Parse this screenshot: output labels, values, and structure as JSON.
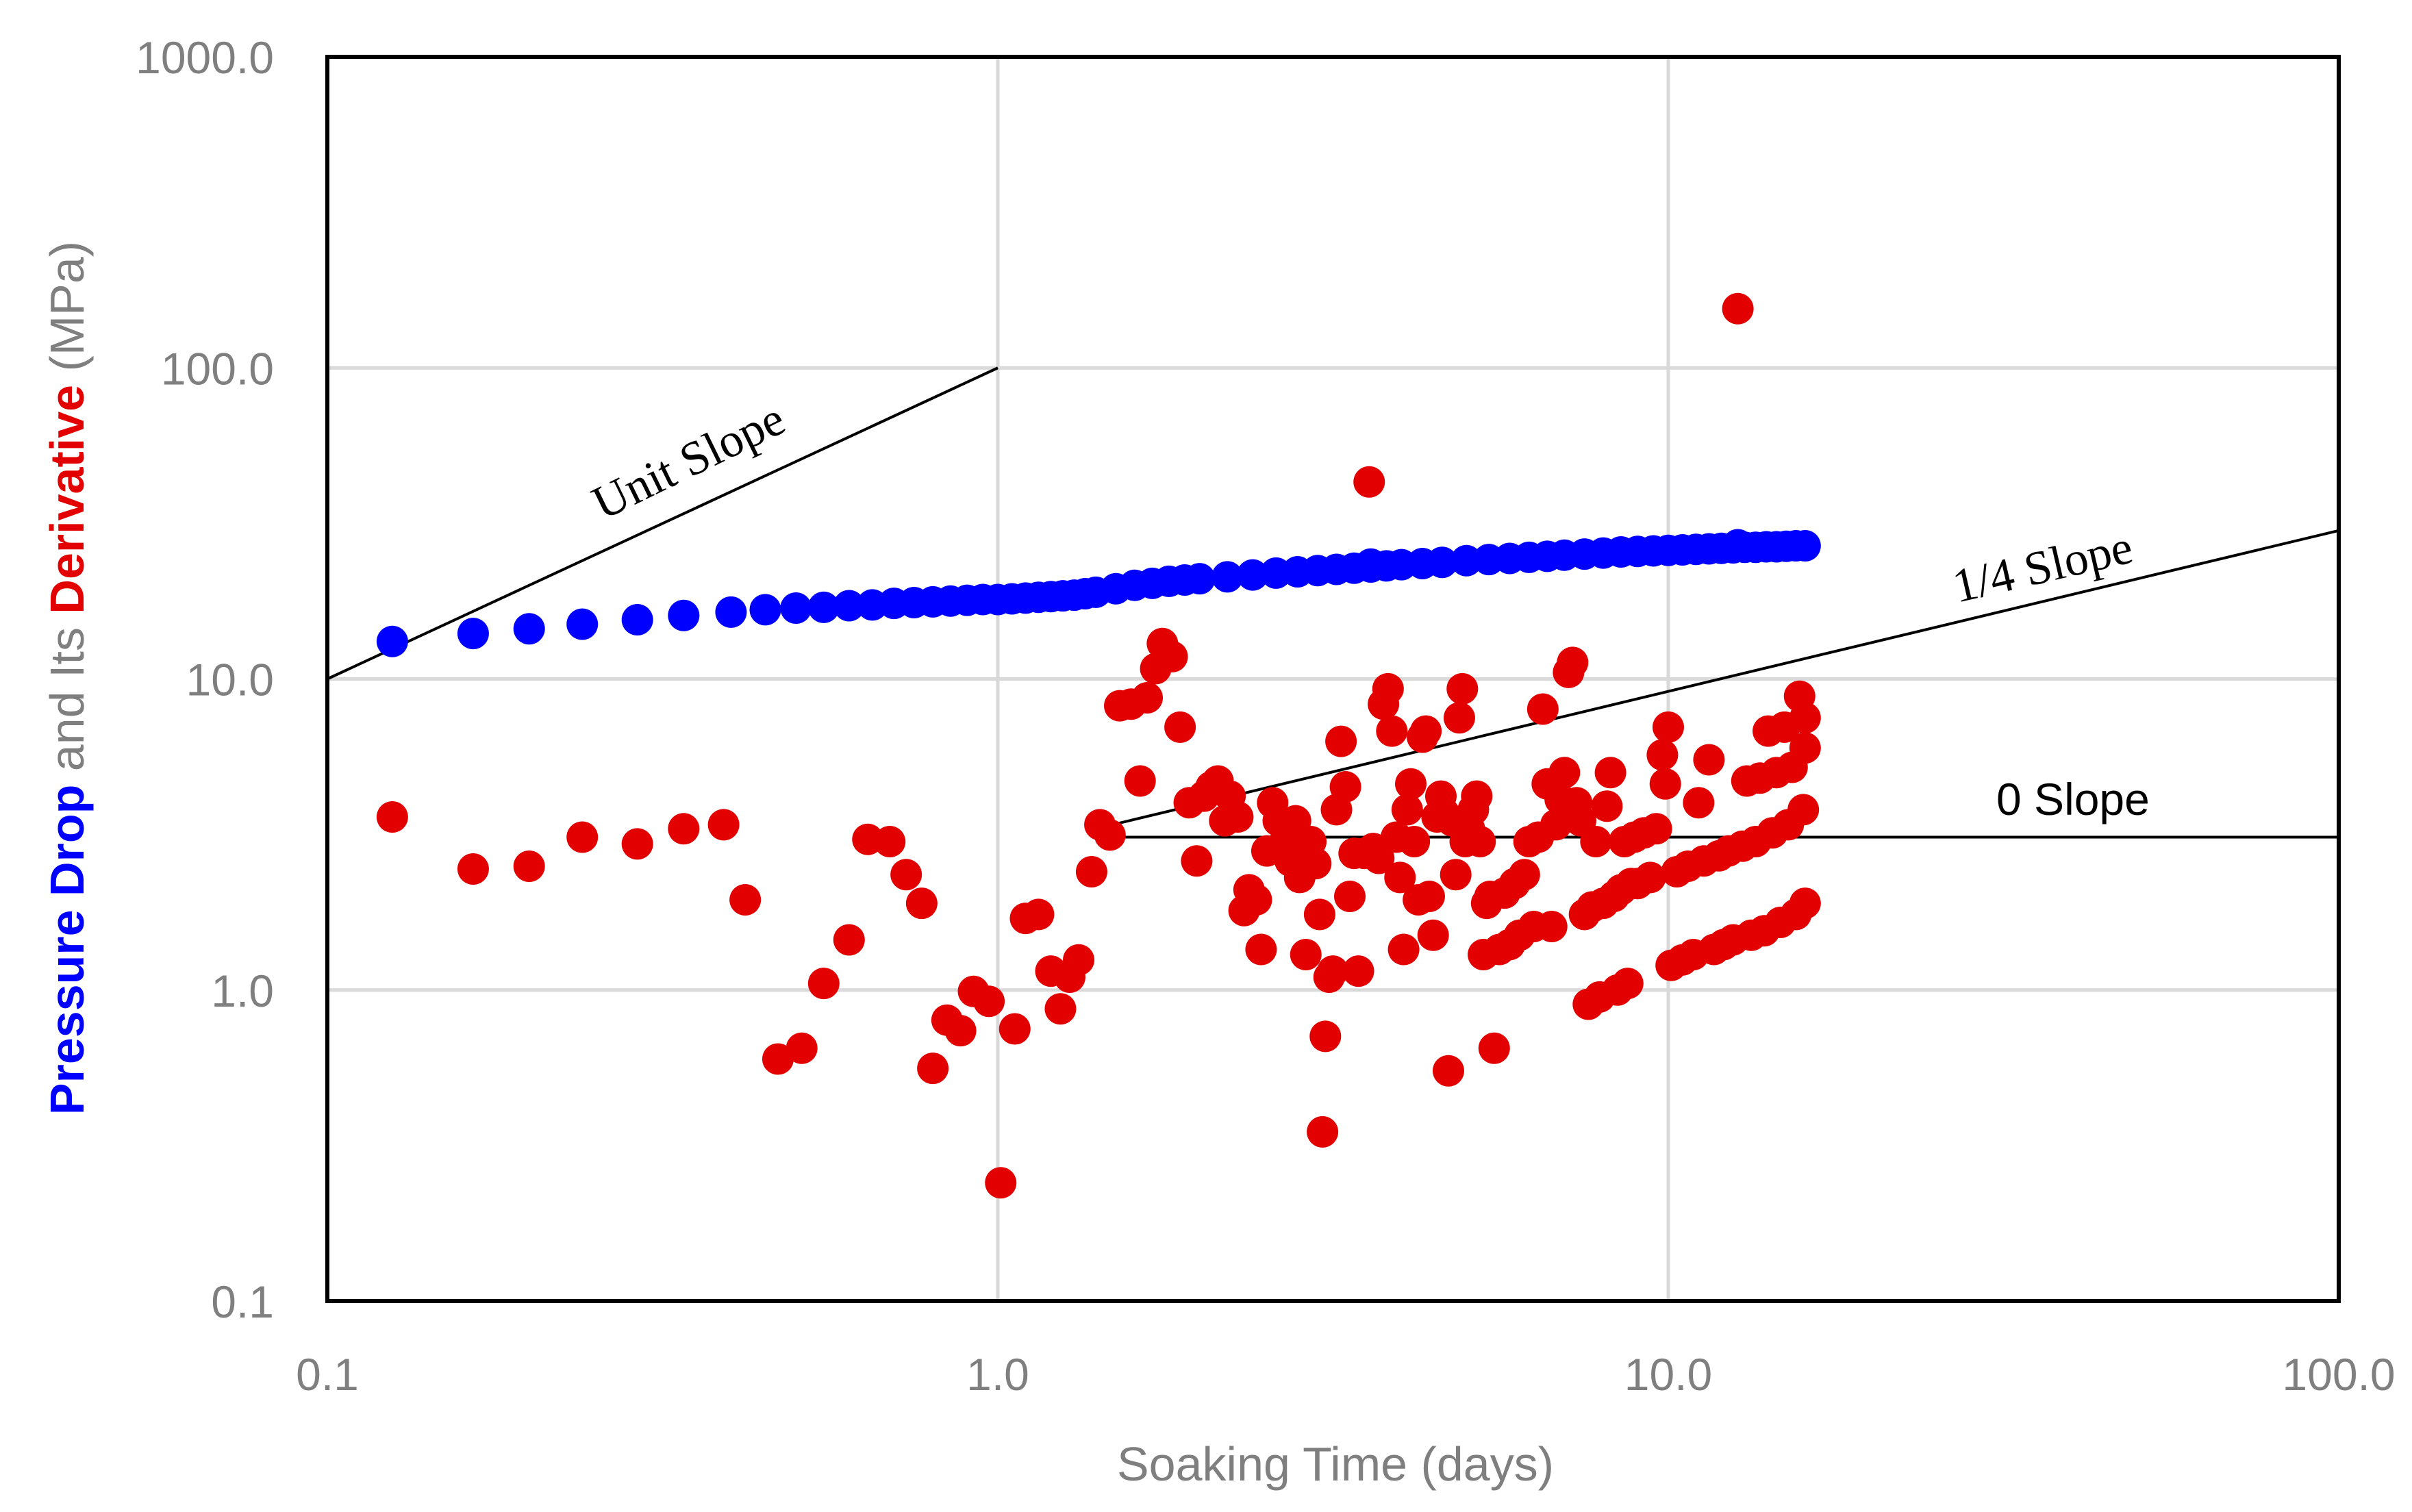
{
  "chart_data": {
    "type": "scatter",
    "x_scale": "log",
    "y_scale": "log",
    "xlim": [
      0.1,
      100
    ],
    "ylim": [
      0.1,
      1000
    ],
    "xlabel": "Soaking Time (days)",
    "ylabel_parts": [
      {
        "text": "Pressure Drop",
        "color": "#0000ff",
        "bold": true
      },
      {
        "text": " and Its ",
        "color": "#7f7f7f",
        "bold": false
      },
      {
        "text": "Derivative",
        "color": "#e30000",
        "bold": true
      },
      {
        "text": " (MPa)",
        "color": "#7f7f7f",
        "bold": false
      }
    ],
    "x_tick_labels": [
      "0.1",
      "1.0",
      "10.0",
      "100.0"
    ],
    "y_tick_labels": [
      "0.1",
      "1.0",
      "10.0",
      "100.0",
      "1000.0"
    ],
    "grid": true,
    "annotations": [
      {
        "text": "Unit Slope",
        "style": "serif"
      },
      {
        "text": "1/4 Slope",
        "style": "serif"
      },
      {
        "text": "0 Slope",
        "style": "sans"
      }
    ],
    "reference_lines": [
      {
        "name": "Unit Slope",
        "x": [
          0.1,
          1.0
        ],
        "y": [
          10.0,
          100.0
        ]
      },
      {
        "name": "1/4 Slope",
        "x": [
          1.4,
          100.0
        ],
        "y": [
          3.3,
          30.0
        ]
      },
      {
        "name": "0 Slope",
        "x": [
          1.4,
          100.0
        ],
        "y": [
          3.1,
          3.1
        ]
      }
    ],
    "series": [
      {
        "color": "#0000ff",
        "points": [
          [
            0.125,
            13.2
          ],
          [
            0.165,
            14.0
          ],
          [
            0.2,
            14.5
          ],
          [
            0.24,
            15.0
          ],
          [
            0.29,
            15.5
          ],
          [
            0.34,
            16.0
          ],
          [
            0.4,
            16.4
          ],
          [
            0.45,
            16.7
          ],
          [
            0.5,
            16.9
          ],
          [
            0.55,
            17.0
          ],
          [
            0.6,
            17.2
          ],
          [
            0.65,
            17.3
          ],
          [
            0.7,
            17.5
          ],
          [
            0.75,
            17.6
          ],
          [
            0.8,
            17.7
          ],
          [
            0.85,
            17.8
          ],
          [
            0.9,
            17.9
          ],
          [
            0.95,
            18.0
          ],
          [
            1.0,
            18.0
          ],
          [
            1.05,
            18.1
          ],
          [
            1.1,
            18.2
          ],
          [
            1.15,
            18.3
          ],
          [
            1.2,
            18.4
          ],
          [
            1.25,
            18.5
          ],
          [
            1.3,
            18.6
          ],
          [
            1.35,
            18.8
          ],
          [
            1.4,
            19.0
          ],
          [
            1.5,
            19.5
          ],
          [
            1.6,
            20.0
          ],
          [
            1.7,
            20.3
          ],
          [
            1.8,
            20.6
          ],
          [
            1.9,
            20.8
          ],
          [
            2.0,
            21.0
          ],
          [
            2.2,
            21.3
          ],
          [
            2.4,
            21.6
          ],
          [
            2.6,
            21.9
          ],
          [
            2.8,
            22.1
          ],
          [
            3.0,
            22.3
          ],
          [
            3.2,
            22.5
          ],
          [
            3.4,
            22.7
          ],
          [
            3.6,
            22.9
          ],
          [
            3.8,
            23.1
          ],
          [
            4.0,
            23.3
          ],
          [
            4.3,
            23.5
          ],
          [
            4.6,
            23.7
          ],
          [
            5.0,
            24.0
          ],
          [
            5.4,
            24.2
          ],
          [
            5.8,
            24.4
          ],
          [
            6.2,
            24.6
          ],
          [
            6.6,
            24.8
          ],
          [
            7.0,
            25.0
          ],
          [
            7.5,
            25.2
          ],
          [
            8.0,
            25.4
          ],
          [
            8.5,
            25.6
          ],
          [
            9.0,
            25.7
          ],
          [
            9.5,
            25.8
          ],
          [
            10.0,
            25.9
          ],
          [
            10.5,
            26.0
          ],
          [
            11.0,
            26.1
          ],
          [
            11.5,
            26.2
          ],
          [
            12.0,
            26.3
          ],
          [
            12.5,
            26.4
          ],
          [
            13.0,
            26.5
          ],
          [
            13.5,
            26.5
          ],
          [
            14.0,
            26.6
          ],
          [
            14.5,
            26.6
          ],
          [
            15.0,
            26.7
          ],
          [
            15.5,
            26.8
          ],
          [
            16.0,
            26.8
          ],
          [
            3.6,
            23.4
          ],
          [
            12.7,
            27.0
          ]
        ]
      },
      {
        "color": "#e30000",
        "points": [
          [
            0.125,
            3.6
          ],
          [
            0.165,
            2.45
          ],
          [
            0.2,
            2.5
          ],
          [
            0.24,
            3.1
          ],
          [
            0.29,
            2.95
          ],
          [
            0.34,
            3.3
          ],
          [
            0.39,
            3.4
          ],
          [
            0.42,
            1.95
          ],
          [
            0.47,
            0.6
          ],
          [
            0.51,
            0.65
          ],
          [
            0.55,
            1.05
          ],
          [
            0.6,
            1.45
          ],
          [
            0.64,
            3.05
          ],
          [
            0.69,
            3.0
          ],
          [
            0.73,
            2.35
          ],
          [
            0.77,
            1.9
          ],
          [
            0.8,
            0.56
          ],
          [
            0.84,
            0.8
          ],
          [
            0.88,
            0.74
          ],
          [
            0.92,
            0.99
          ],
          [
            0.97,
            0.92
          ],
          [
            1.01,
            0.24
          ],
          [
            1.06,
            0.75
          ],
          [
            1.1,
            1.7
          ],
          [
            1.15,
            1.75
          ],
          [
            1.2,
            1.15
          ],
          [
            1.24,
            0.87
          ],
          [
            1.28,
            1.1
          ],
          [
            1.32,
            1.25
          ],
          [
            1.38,
            2.4
          ],
          [
            1.42,
            3.4
          ],
          [
            1.47,
            3.15
          ],
          [
            1.52,
            8.2
          ],
          [
            1.58,
            8.3
          ],
          [
            1.63,
            4.7
          ],
          [
            1.67,
            8.7
          ],
          [
            1.72,
            10.8
          ],
          [
            1.76,
            13.0
          ],
          [
            1.82,
            11.8
          ],
          [
            1.87,
            7.0
          ],
          [
            1.93,
            4.0
          ],
          [
            1.98,
            2.6
          ],
          [
            2.03,
            4.2
          ],
          [
            2.08,
            4.5
          ],
          [
            2.13,
            4.7
          ],
          [
            2.18,
            3.5
          ],
          [
            2.22,
            4.2
          ],
          [
            2.28,
            3.6
          ],
          [
            2.33,
            1.8
          ],
          [
            2.37,
            2.1
          ],
          [
            2.43,
            1.95
          ],
          [
            2.47,
            1.35
          ],
          [
            2.52,
            2.8
          ],
          [
            2.57,
            4.0
          ],
          [
            2.62,
            3.5
          ],
          [
            2.68,
            3.0
          ],
          [
            2.73,
            2.6
          ],
          [
            2.78,
            3.5
          ],
          [
            2.82,
            2.3
          ],
          [
            2.88,
            1.3
          ],
          [
            2.93,
            3.0
          ],
          [
            2.98,
            2.55
          ],
          [
            3.02,
            1.75
          ],
          [
            3.05,
            0.35
          ],
          [
            3.08,
            0.71
          ],
          [
            3.12,
            1.1
          ],
          [
            3.16,
            1.15
          ],
          [
            3.2,
            3.8
          ],
          [
            3.25,
            6.3
          ],
          [
            3.3,
            4.5
          ],
          [
            3.35,
            2.0
          ],
          [
            3.4,
            2.75
          ],
          [
            3.45,
            1.15
          ],
          [
            3.52,
            2.75
          ],
          [
            3.58,
            43.0
          ],
          [
            3.63,
            2.85
          ],
          [
            3.7,
            2.65
          ],
          [
            3.76,
            8.3
          ],
          [
            3.82,
            9.3
          ],
          [
            3.87,
            6.8
          ],
          [
            3.93,
            3.1
          ],
          [
            3.98,
            2.3
          ],
          [
            4.03,
            1.35
          ],
          [
            4.08,
            3.8
          ],
          [
            4.13,
            4.6
          ],
          [
            4.18,
            3.0
          ],
          [
            4.24,
            1.95
          ],
          [
            4.3,
            6.5
          ],
          [
            4.35,
            6.8
          ],
          [
            4.4,
            2.0
          ],
          [
            4.46,
            1.5
          ],
          [
            4.52,
            3.6
          ],
          [
            4.58,
            4.2
          ],
          [
            4.63,
            3.7
          ],
          [
            4.7,
            0.55
          ],
          [
            4.76,
            3.5
          ],
          [
            4.82,
            2.35
          ],
          [
            4.88,
            7.5
          ],
          [
            4.93,
            9.3
          ],
          [
            4.98,
            3.0
          ],
          [
            5.05,
            3.3
          ],
          [
            5.12,
            3.8
          ],
          [
            5.18,
            4.2
          ],
          [
            5.24,
            3.0
          ],
          [
            5.3,
            1.3
          ],
          [
            5.36,
            1.9
          ],
          [
            5.42,
            2.0
          ],
          [
            5.5,
            0.65
          ],
          [
            5.6,
            1.35
          ],
          [
            5.7,
            2.05
          ],
          [
            5.8,
            1.4
          ],
          [
            5.9,
            2.2
          ],
          [
            6.0,
            1.5
          ],
          [
            6.1,
            2.35
          ],
          [
            6.2,
            3.0
          ],
          [
            6.3,
            1.6
          ],
          [
            6.4,
            3.1
          ],
          [
            6.5,
            8.0
          ],
          [
            6.6,
            4.6
          ],
          [
            6.7,
            1.6
          ],
          [
            6.8,
            3.4
          ],
          [
            6.9,
            4.1
          ],
          [
            7.0,
            5.0
          ],
          [
            7.1,
            10.5
          ],
          [
            7.2,
            11.3
          ],
          [
            7.3,
            4.0
          ],
          [
            7.4,
            3.5
          ],
          [
            7.5,
            1.75
          ],
          [
            7.6,
            0.9
          ],
          [
            7.7,
            1.85
          ],
          [
            7.8,
            3.0
          ],
          [
            7.9,
            0.95
          ],
          [
            8.0,
            1.9
          ],
          [
            8.1,
            3.9
          ],
          [
            8.2,
            5.0
          ],
          [
            8.3,
            2.0
          ],
          [
            8.4,
            1.0
          ],
          [
            8.5,
            2.1
          ],
          [
            8.6,
            3.0
          ],
          [
            8.7,
            1.05
          ],
          [
            8.8,
            2.2
          ],
          [
            8.9,
            3.1
          ],
          [
            9.0,
            2.2
          ],
          [
            9.2,
            3.2
          ],
          [
            9.4,
            2.3
          ],
          [
            9.6,
            3.3
          ],
          [
            9.8,
            5.7
          ],
          [
            9.9,
            4.6
          ],
          [
            10.0,
            7.0
          ],
          [
            10.1,
            1.2
          ],
          [
            10.3,
            2.4
          ],
          [
            10.5,
            1.25
          ],
          [
            10.7,
            2.5
          ],
          [
            10.9,
            1.3
          ],
          [
            11.1,
            4.0
          ],
          [
            11.3,
            2.6
          ],
          [
            11.5,
            5.5
          ],
          [
            11.7,
            1.35
          ],
          [
            11.9,
            2.7
          ],
          [
            12.1,
            1.4
          ],
          [
            12.3,
            2.8
          ],
          [
            12.5,
            1.45
          ],
          [
            12.7,
            155.0
          ],
          [
            12.9,
            2.9
          ],
          [
            13.1,
            4.7
          ],
          [
            13.3,
            1.5
          ],
          [
            13.5,
            3.0
          ],
          [
            13.7,
            4.8
          ],
          [
            13.9,
            1.55
          ],
          [
            14.1,
            6.8
          ],
          [
            14.3,
            3.2
          ],
          [
            14.5,
            5.0
          ],
          [
            14.7,
            1.65
          ],
          [
            14.9,
            7.0
          ],
          [
            15.1,
            3.4
          ],
          [
            15.3,
            5.2
          ],
          [
            15.5,
            1.75
          ],
          [
            15.7,
            8.8
          ],
          [
            15.9,
            3.8
          ],
          [
            16.0,
            7.5
          ],
          [
            16.0,
            6.0
          ],
          [
            16.0,
            1.9
          ]
        ]
      }
    ]
  }
}
